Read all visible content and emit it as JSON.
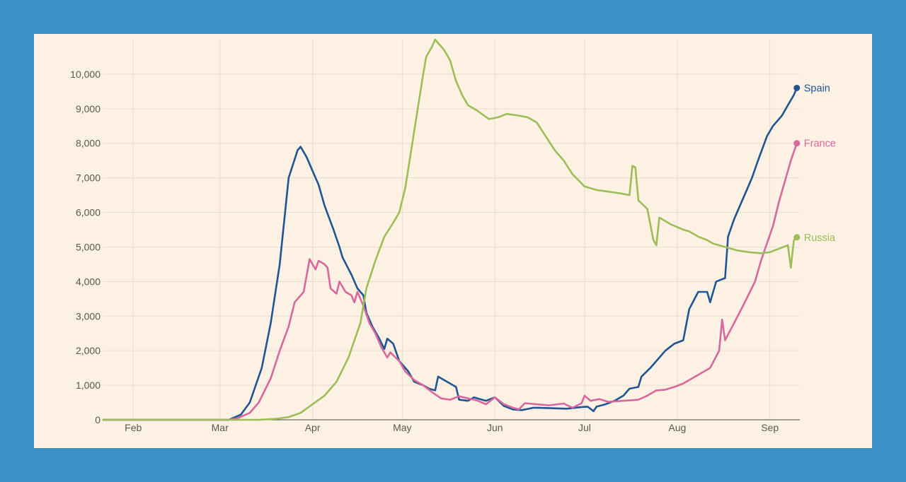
{
  "chart_data": {
    "type": "line",
    "title": "",
    "xlabel": "",
    "ylabel": "",
    "ylim": [
      0,
      11000
    ],
    "y_ticks": [
      {
        "v": 0,
        "label": "0"
      },
      {
        "v": 1000,
        "label": "1,000"
      },
      {
        "v": 2000,
        "label": "2,000"
      },
      {
        "v": 3000,
        "label": "3,000"
      },
      {
        "v": 4000,
        "label": "4,000"
      },
      {
        "v": 5000,
        "label": "5,000"
      },
      {
        "v": 6000,
        "label": "6,000"
      },
      {
        "v": 7000,
        "label": "7,000"
      },
      {
        "v": 8000,
        "label": "8,000"
      },
      {
        "v": 9000,
        "label": "9,000"
      },
      {
        "v": 10000,
        "label": "10,000"
      }
    ],
    "x_start": "2020-01-22",
    "x_end": "2020-09-11",
    "x_ticks": [
      {
        "date": "2020-02-01",
        "label": "Feb"
      },
      {
        "date": "2020-03-01",
        "label": "Mar"
      },
      {
        "date": "2020-04-01",
        "label": "Apr"
      },
      {
        "date": "2020-05-01",
        "label": "May"
      },
      {
        "date": "2020-06-01",
        "label": "Jun"
      },
      {
        "date": "2020-07-01",
        "label": "Jul"
      },
      {
        "date": "2020-08-01",
        "label": "Aug"
      },
      {
        "date": "2020-09-01",
        "label": "Sep"
      }
    ],
    "grid": true,
    "legend": "end-of-line labels",
    "series": [
      {
        "name": "Spain",
        "color": "#1f5591",
        "points": [
          [
            "2020-01-22",
            0
          ],
          [
            "2020-03-04",
            0
          ],
          [
            "2020-03-08",
            150
          ],
          [
            "2020-03-11",
            500
          ],
          [
            "2020-03-15",
            1500
          ],
          [
            "2020-03-18",
            2800
          ],
          [
            "2020-03-21",
            4500
          ],
          [
            "2020-03-24",
            7000
          ],
          [
            "2020-03-27",
            7800
          ],
          [
            "2020-03-28",
            7900
          ],
          [
            "2020-03-30",
            7600
          ],
          [
            "2020-04-02",
            7000
          ],
          [
            "2020-04-03",
            6800
          ],
          [
            "2020-04-05",
            6200
          ],
          [
            "2020-04-08",
            5500
          ],
          [
            "2020-04-10",
            5000
          ],
          [
            "2020-04-11",
            4700
          ],
          [
            "2020-04-14",
            4200
          ],
          [
            "2020-04-16",
            3800
          ],
          [
            "2020-04-18",
            3600
          ],
          [
            "2020-04-19",
            3100
          ],
          [
            "2020-04-21",
            2700
          ],
          [
            "2020-04-23",
            2400
          ],
          [
            "2020-04-25",
            2050
          ],
          [
            "2020-04-26",
            2350
          ],
          [
            "2020-04-28",
            2200
          ],
          [
            "2020-04-30",
            1700
          ],
          [
            "2020-05-03",
            1400
          ],
          [
            "2020-05-05",
            1100
          ],
          [
            "2020-05-08",
            1000
          ],
          [
            "2020-05-10",
            900
          ],
          [
            "2020-05-12",
            850
          ],
          [
            "2020-05-13",
            1250
          ],
          [
            "2020-05-15",
            1150
          ],
          [
            "2020-05-17",
            1050
          ],
          [
            "2020-05-19",
            950
          ],
          [
            "2020-05-20",
            580
          ],
          [
            "2020-05-23",
            550
          ],
          [
            "2020-05-25",
            650
          ],
          [
            "2020-05-27",
            600
          ],
          [
            "2020-05-29",
            550
          ],
          [
            "2020-06-01",
            650
          ],
          [
            "2020-06-04",
            400
          ],
          [
            "2020-06-07",
            300
          ],
          [
            "2020-06-10",
            280
          ],
          [
            "2020-06-14",
            350
          ],
          [
            "2020-06-19",
            340
          ],
          [
            "2020-06-25",
            320
          ],
          [
            "2020-06-30",
            370
          ],
          [
            "2020-07-02",
            380
          ],
          [
            "2020-07-04",
            250
          ],
          [
            "2020-07-05",
            380
          ],
          [
            "2020-07-08",
            450
          ],
          [
            "2020-07-11",
            550
          ],
          [
            "2020-07-14",
            700
          ],
          [
            "2020-07-16",
            900
          ],
          [
            "2020-07-19",
            950
          ],
          [
            "2020-07-20",
            1250
          ],
          [
            "2020-07-23",
            1500
          ],
          [
            "2020-07-26",
            1800
          ],
          [
            "2020-07-28",
            2000
          ],
          [
            "2020-07-31",
            2200
          ],
          [
            "2020-08-03",
            2300
          ],
          [
            "2020-08-05",
            3200
          ],
          [
            "2020-08-08",
            3700
          ],
          [
            "2020-08-11",
            3700
          ],
          [
            "2020-08-12",
            3400
          ],
          [
            "2020-08-14",
            4000
          ],
          [
            "2020-08-17",
            4100
          ],
          [
            "2020-08-18",
            5300
          ],
          [
            "2020-08-20",
            5800
          ],
          [
            "2020-08-22",
            6200
          ],
          [
            "2020-08-24",
            6600
          ],
          [
            "2020-08-26",
            7000
          ],
          [
            "2020-08-28",
            7500
          ],
          [
            "2020-08-31",
            8200
          ],
          [
            "2020-09-02",
            8500
          ],
          [
            "2020-09-05",
            8800
          ],
          [
            "2020-09-07",
            9100
          ],
          [
            "2020-09-09",
            9400
          ],
          [
            "2020-09-10",
            9600
          ]
        ]
      },
      {
        "name": "France",
        "color": "#d8679e",
        "points": [
          [
            "2020-01-22",
            0
          ],
          [
            "2020-03-04",
            0
          ],
          [
            "2020-03-07",
            50
          ],
          [
            "2020-03-11",
            200
          ],
          [
            "2020-03-14",
            500
          ],
          [
            "2020-03-18",
            1200
          ],
          [
            "2020-03-21",
            2000
          ],
          [
            "2020-03-24",
            2700
          ],
          [
            "2020-03-26",
            3400
          ],
          [
            "2020-03-29",
            3700
          ],
          [
            "2020-03-31",
            4650
          ],
          [
            "2020-04-02",
            4350
          ],
          [
            "2020-04-03",
            4600
          ],
          [
            "2020-04-05",
            4500
          ],
          [
            "2020-04-06",
            4400
          ],
          [
            "2020-04-07",
            3800
          ],
          [
            "2020-04-09",
            3650
          ],
          [
            "2020-04-10",
            4000
          ],
          [
            "2020-04-12",
            3700
          ],
          [
            "2020-04-14",
            3600
          ],
          [
            "2020-04-15",
            3400
          ],
          [
            "2020-04-16",
            3700
          ],
          [
            "2020-04-18",
            3300
          ],
          [
            "2020-04-20",
            2800
          ],
          [
            "2020-04-22",
            2500
          ],
          [
            "2020-04-24",
            2100
          ],
          [
            "2020-04-26",
            1800
          ],
          [
            "2020-04-27",
            1950
          ],
          [
            "2020-04-30",
            1700
          ],
          [
            "2020-05-02",
            1400
          ],
          [
            "2020-05-05",
            1150
          ],
          [
            "2020-05-08",
            1000
          ],
          [
            "2020-05-11",
            800
          ],
          [
            "2020-05-14",
            620
          ],
          [
            "2020-05-17",
            580
          ],
          [
            "2020-05-20",
            680
          ],
          [
            "2020-05-23",
            620
          ],
          [
            "2020-05-26",
            560
          ],
          [
            "2020-05-29",
            450
          ],
          [
            "2020-06-01",
            650
          ],
          [
            "2020-06-04",
            450
          ],
          [
            "2020-06-07",
            350
          ],
          [
            "2020-06-09",
            300
          ],
          [
            "2020-06-11",
            480
          ],
          [
            "2020-06-15",
            450
          ],
          [
            "2020-06-19",
            420
          ],
          [
            "2020-06-24",
            470
          ],
          [
            "2020-06-27",
            350
          ],
          [
            "2020-06-30",
            480
          ],
          [
            "2020-07-01",
            700
          ],
          [
            "2020-07-03",
            550
          ],
          [
            "2020-07-06",
            600
          ],
          [
            "2020-07-09",
            520
          ],
          [
            "2020-07-14",
            550
          ],
          [
            "2020-07-19",
            580
          ],
          [
            "2020-07-22",
            700
          ],
          [
            "2020-07-25",
            850
          ],
          [
            "2020-07-28",
            870
          ],
          [
            "2020-07-31",
            950
          ],
          [
            "2020-08-03",
            1050
          ],
          [
            "2020-08-06",
            1200
          ],
          [
            "2020-08-09",
            1350
          ],
          [
            "2020-08-12",
            1500
          ],
          [
            "2020-08-15",
            2000
          ],
          [
            "2020-08-16",
            2900
          ],
          [
            "2020-08-17",
            2300
          ],
          [
            "2020-08-20",
            2800
          ],
          [
            "2020-08-23",
            3300
          ],
          [
            "2020-08-27",
            4000
          ],
          [
            "2020-08-29",
            4600
          ],
          [
            "2020-08-31",
            5100
          ],
          [
            "2020-09-02",
            5600
          ],
          [
            "2020-09-04",
            6300
          ],
          [
            "2020-09-06",
            6900
          ],
          [
            "2020-09-08",
            7500
          ],
          [
            "2020-09-10",
            8000
          ]
        ]
      },
      {
        "name": "Russia",
        "color": "#9dbd56",
        "points": [
          [
            "2020-01-22",
            0
          ],
          [
            "2020-03-14",
            0
          ],
          [
            "2020-03-20",
            30
          ],
          [
            "2020-03-24",
            80
          ],
          [
            "2020-03-28",
            200
          ],
          [
            "2020-04-01",
            450
          ],
          [
            "2020-04-05",
            700
          ],
          [
            "2020-04-09",
            1100
          ],
          [
            "2020-04-13",
            1800
          ],
          [
            "2020-04-17",
            2800
          ],
          [
            "2020-04-19",
            3800
          ],
          [
            "2020-04-22",
            4600
          ],
          [
            "2020-04-25",
            5300
          ],
          [
            "2020-04-28",
            5700
          ],
          [
            "2020-04-30",
            6000
          ],
          [
            "2020-05-02",
            6700
          ],
          [
            "2020-05-04",
            7800
          ],
          [
            "2020-05-06",
            8900
          ],
          [
            "2020-05-08",
            10000
          ],
          [
            "2020-05-09",
            10500
          ],
          [
            "2020-05-11",
            10800
          ],
          [
            "2020-05-12",
            11000
          ],
          [
            "2020-05-13",
            10900
          ],
          [
            "2020-05-15",
            10700
          ],
          [
            "2020-05-17",
            10400
          ],
          [
            "2020-05-19",
            9800
          ],
          [
            "2020-05-21",
            9400
          ],
          [
            "2020-05-23",
            9100
          ],
          [
            "2020-05-26",
            8950
          ],
          [
            "2020-05-30",
            8700
          ],
          [
            "2020-06-02",
            8750
          ],
          [
            "2020-06-05",
            8850
          ],
          [
            "2020-06-09",
            8800
          ],
          [
            "2020-06-12",
            8750
          ],
          [
            "2020-06-15",
            8600
          ],
          [
            "2020-06-18",
            8200
          ],
          [
            "2020-06-21",
            7800
          ],
          [
            "2020-06-24",
            7500
          ],
          [
            "2020-06-27",
            7100
          ],
          [
            "2020-07-01",
            6750
          ],
          [
            "2020-07-05",
            6650
          ],
          [
            "2020-07-09",
            6600
          ],
          [
            "2020-07-13",
            6550
          ],
          [
            "2020-07-16",
            6500
          ],
          [
            "2020-07-17",
            7350
          ],
          [
            "2020-07-18",
            7300
          ],
          [
            "2020-07-19",
            6350
          ],
          [
            "2020-07-22",
            6100
          ],
          [
            "2020-07-24",
            5200
          ],
          [
            "2020-07-25",
            5050
          ],
          [
            "2020-07-26",
            5850
          ],
          [
            "2020-07-30",
            5650
          ],
          [
            "2020-08-03",
            5500
          ],
          [
            "2020-08-05",
            5450
          ],
          [
            "2020-08-08",
            5300
          ],
          [
            "2020-08-11",
            5200
          ],
          [
            "2020-08-13",
            5100
          ],
          [
            "2020-08-17",
            5000
          ],
          [
            "2020-08-21",
            4900
          ],
          [
            "2020-08-25",
            4850
          ],
          [
            "2020-08-29",
            4820
          ],
          [
            "2020-09-01",
            4850
          ],
          [
            "2020-09-04",
            4950
          ],
          [
            "2020-09-07",
            5050
          ],
          [
            "2020-09-08",
            4400
          ],
          [
            "2020-09-09",
            5200
          ],
          [
            "2020-09-10",
            5280
          ]
        ]
      }
    ]
  }
}
